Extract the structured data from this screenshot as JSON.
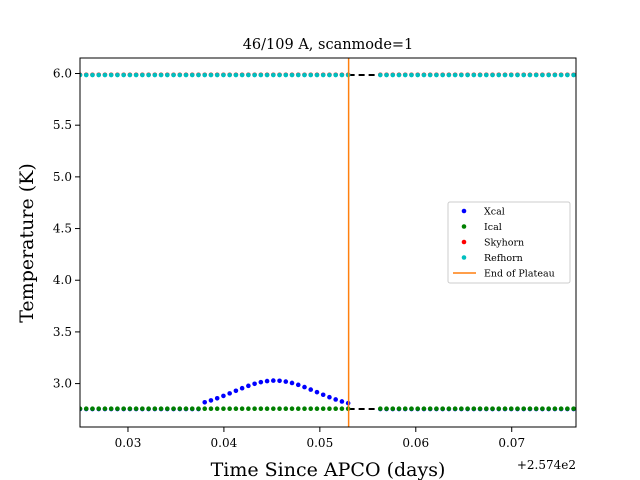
{
  "chart_data": {
    "type": "scatter",
    "title": "46/109 A, scanmode=1",
    "xlabel": "Time Since APCO (days)",
    "ylabel": "Temperature (K)",
    "x_offset_label": "+2.574e2",
    "xlim": [
      0.025,
      0.0767
    ],
    "ylim": [
      2.58,
      6.15
    ],
    "x_ticks": [
      0.03,
      0.04,
      0.05,
      0.06,
      0.07
    ],
    "x_tick_labels": [
      "0.03",
      "0.04",
      "0.05",
      "0.06",
      "0.07"
    ],
    "y_ticks": [
      3.0,
      3.5,
      4.0,
      4.5,
      5.0,
      5.5,
      6.0
    ],
    "y_tick_labels": [
      "3.0",
      "3.5",
      "4.0",
      "4.5",
      "5.0",
      "5.5",
      "6.0"
    ],
    "grid": false,
    "legend_position": "center-right",
    "segments": [
      [
        0.025,
        0.053
      ],
      [
        0.0563,
        0.0767
      ]
    ],
    "point_step": 0.00065,
    "gap_line": {
      "x": [
        0.053,
        0.0563
      ],
      "y": [
        2.754,
        2.754
      ],
      "style": "dashed",
      "color": "#000000"
    },
    "gap_line_top": {
      "x": [
        0.053,
        0.0563
      ],
      "y": [
        5.985,
        5.985
      ],
      "style": "dashed",
      "color": "#000000"
    },
    "series": [
      {
        "name": "Xcal",
        "color": "#0000ff",
        "base": 2.754,
        "bump": {
          "center": 0.0453,
          "amplitude": 0.275,
          "width": 0.0043,
          "start": 0.0375,
          "end": 0.053
        }
      },
      {
        "name": "Ical",
        "color": "#008000",
        "base": 2.757
      },
      {
        "name": "Skyhorn",
        "color": "#ff0000",
        "base": 5.988
      },
      {
        "name": "Refhorn",
        "color": "#00bfbf",
        "base": 5.985
      }
    ],
    "vlines": [
      {
        "name": "End of Plateau",
        "x": 0.053,
        "color": "#ff7f0e"
      }
    ]
  }
}
